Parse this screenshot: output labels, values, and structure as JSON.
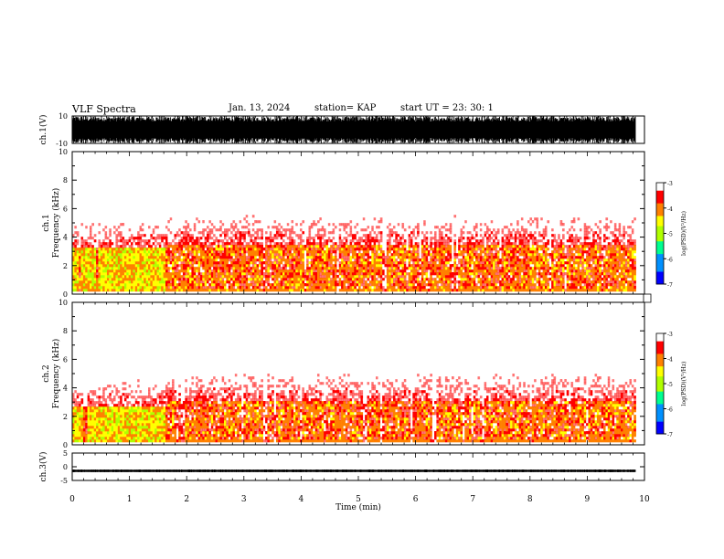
{
  "header": {
    "title": "VLF Spectra",
    "date": "Jan. 13, 2024",
    "station": "station= KAP",
    "start": "start UT =  23: 30: 1"
  },
  "chart_data": [
    {
      "type": "line",
      "panel": "waveform ch.1",
      "ylabel": "ch.1(V)",
      "ylim": [
        -10,
        10
      ],
      "yticks": [
        "10",
        "-10"
      ],
      "xlim": [
        0,
        10
      ],
      "note_series": "dense oscillating waveform between -10 and 10 V, 0 to 9.85 min"
    },
    {
      "type": "heatmap",
      "panel": "spectrogram ch.1",
      "ylabel_top": "ch.1",
      "ylabel": "Frequency (kHz)",
      "ylim": [
        0,
        10
      ],
      "yticks": [
        "0",
        "2",
        "4",
        "6",
        "8",
        "10"
      ],
      "xlim": [
        0,
        10
      ],
      "data_end_min": 9.85,
      "colorbar": {
        "label": "log(PSD)(V²/Hz)",
        "range": [
          -7,
          -3
        ],
        "ticks": [
          "-3",
          "-4",
          "-5",
          "-6",
          "-7"
        ]
      },
      "segments": [
        {
          "x0": 0,
          "x1": 1.62,
          "peak_band_khz": [
            0.2,
            3.2
          ],
          "intensity": "high (yellow-green, ~-4.5 to -5)"
        },
        {
          "x0": 1.62,
          "x1": 9.85,
          "peak_band_khz": [
            0.3,
            3.5
          ],
          "intensity": "medium (red-yellow, ~-3.5 to -4)"
        }
      ]
    },
    {
      "type": "heatmap",
      "panel": "spectrogram ch.2",
      "ylabel_top": "ch.2",
      "ylabel": "Frequency (kHz)",
      "ylim": [
        0,
        10
      ],
      "yticks": [
        "0",
        "2",
        "4",
        "6",
        "8",
        "10"
      ],
      "xlim": [
        0,
        10
      ],
      "data_end_min": 9.85,
      "colorbar": {
        "label": "log(PSD)(V²/Hz)",
        "range": [
          -7,
          -3
        ],
        "ticks": [
          "-3",
          "-4",
          "-5",
          "-6",
          "-7"
        ]
      },
      "segments": [
        {
          "x0": 0,
          "x1": 1.62,
          "peak_band_khz": [
            0.2,
            2.6
          ],
          "intensity": "high (yellow-green, ~-4.5 to -5)"
        },
        {
          "x0": 1.62,
          "x1": 9.85,
          "peak_band_khz": [
            0.3,
            3.0
          ],
          "intensity": "medium (red-yellow, ~-3.5 to -4)"
        }
      ]
    },
    {
      "type": "line",
      "panel": "waveform ch.3",
      "ylabel": "ch.3(V)",
      "ylim": [
        -5,
        5
      ],
      "yticks": [
        "5",
        "0",
        "-5"
      ],
      "xlim": [
        0,
        10
      ],
      "note_series": "narrow band centered near -1.5 V, amplitude ~0.4 V, 0 to 9.85 min"
    }
  ],
  "xaxis": {
    "label": "Time (min)",
    "ticks": [
      "0",
      "1",
      "2",
      "3",
      "4",
      "5",
      "6",
      "7",
      "8",
      "9",
      "10"
    ]
  },
  "colors": {
    "colormap": [
      "#000080",
      "#0000ff",
      "#00a0ff",
      "#00ff80",
      "#c0ff00",
      "#ffff00",
      "#ff8000",
      "#ff0000",
      "#ffffff"
    ]
  }
}
